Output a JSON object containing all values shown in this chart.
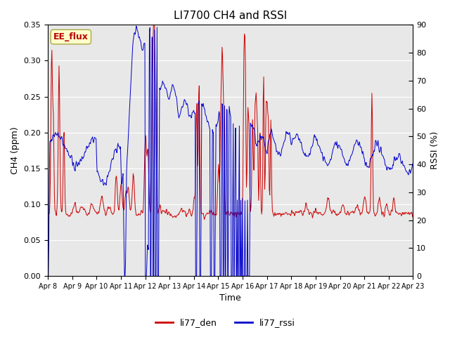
{
  "title": "LI7700 CH4 and RSSI",
  "xlabel": "Time",
  "ylabel_left": "CH4 (ppm)",
  "ylabel_right": "RSSI (%)",
  "ylim_left": [
    0.0,
    0.35
  ],
  "ylim_right": [
    0,
    90
  ],
  "yticks_left": [
    0.0,
    0.05,
    0.1,
    0.15,
    0.2,
    0.25,
    0.3,
    0.35
  ],
  "yticks_right": [
    0,
    10,
    20,
    30,
    40,
    50,
    60,
    70,
    80,
    90
  ],
  "site_label": "EE_flux",
  "site_label_color": "#bb0000",
  "site_label_bg": "#ffffcc",
  "site_label_edge": "#aaaa44",
  "color_ch4": "#cc0000",
  "color_rssi": "#0000cc",
  "legend_labels": [
    "li77_den",
    "li77_rssi"
  ],
  "fig_bg": "#ffffff",
  "plot_bg": "#e8e8e8",
  "grid_color": "#ffffff",
  "x_tick_labels": [
    "Apr 8",
    "Apr 9",
    "Apr 10",
    "Apr 11",
    "Apr 12",
    "Apr 13",
    "Apr 14",
    "Apr 15",
    "Apr 16",
    "Apr 17",
    "Apr 18",
    "Apr 19",
    "Apr 20",
    "Apr 21",
    "Apr 22",
    "Apr 23"
  ],
  "n_days": 15,
  "figsize": [
    6.4,
    4.8
  ],
  "dpi": 100
}
